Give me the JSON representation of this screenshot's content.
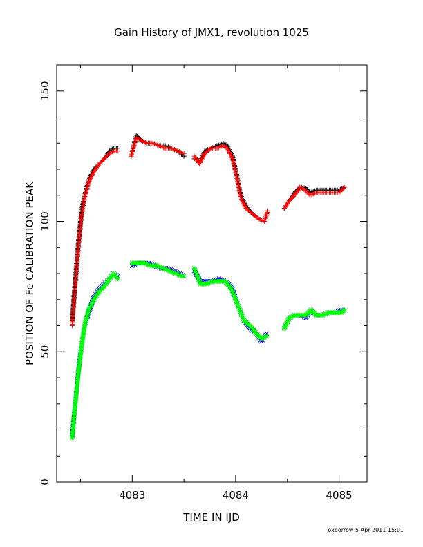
{
  "chart_data": {
    "type": "scatter",
    "title": "Gain History of JMX1, revolution 1025",
    "xlabel": "TIME IN IJD",
    "ylabel": "POSITION OF Fe CALIBRATION PEAK",
    "xlim": [
      4082.27,
      4085.27
    ],
    "ylim": [
      0,
      160
    ],
    "xticks": [
      4083,
      4084,
      4085
    ],
    "yticks": [
      0,
      50,
      100,
      150
    ],
    "grid": false,
    "legend": "none",
    "credit": "oxborrow  5-Apr-2011 15:01",
    "series": [
      {
        "marker": "+",
        "color": "#000000",
        "segments": [
          [
            [
              4082.42,
              62
            ],
            [
              4082.45,
              78
            ],
            [
              4082.48,
              92
            ],
            [
              4082.51,
              104
            ],
            [
              4082.54,
              110
            ],
            [
              4082.58,
              116
            ],
            [
              4082.63,
              120
            ],
            [
              4082.68,
              122
            ],
            [
              4082.73,
              124
            ],
            [
              4082.78,
              127
            ],
            [
              4082.82,
              128
            ],
            [
              4082.86,
              128
            ]
          ],
          [
            [
              4082.99,
              125
            ],
            [
              4083.04,
              133
            ],
            [
              4083.09,
              131
            ],
            [
              4083.14,
              130
            ],
            [
              4083.2,
              130
            ],
            [
              4083.26,
              129
            ],
            [
              4083.32,
              129
            ],
            [
              4083.38,
              128
            ],
            [
              4083.44,
              127
            ],
            [
              4083.5,
              125
            ]
          ],
          [
            [
              4083.6,
              124
            ],
            [
              4083.66,
              123
            ],
            [
              4083.7,
              127
            ],
            [
              4083.76,
              128
            ],
            [
              4083.82,
              129
            ],
            [
              4083.88,
              130
            ],
            [
              4083.92,
              129
            ],
            [
              4083.97,
              125
            ],
            [
              4084.01,
              118
            ],
            [
              4084.05,
              110
            ],
            [
              4084.1,
              106
            ],
            [
              4084.16,
              103
            ],
            [
              4084.22,
              101
            ],
            [
              4084.28,
              100
            ],
            [
              4084.31,
              104
            ]
          ],
          [
            [
              4084.47,
              105
            ],
            [
              4084.52,
              108
            ],
            [
              4084.57,
              111
            ],
            [
              4084.62,
              113
            ],
            [
              4084.67,
              113
            ],
            [
              4084.72,
              111
            ],
            [
              4084.78,
              112
            ],
            [
              4084.85,
              112
            ],
            [
              4084.92,
              112
            ],
            [
              4085.0,
              112
            ],
            [
              4085.05,
              113
            ]
          ]
        ]
      },
      {
        "marker": "+",
        "color": "#ff0000",
        "segments": [
          [
            [
              4082.42,
              60
            ],
            [
              4082.45,
              76
            ],
            [
              4082.48,
              90
            ],
            [
              4082.51,
              102
            ],
            [
              4082.54,
              109
            ],
            [
              4082.58,
              115
            ],
            [
              4082.63,
              119
            ],
            [
              4082.68,
              122
            ],
            [
              4082.73,
              124
            ],
            [
              4082.78,
              126
            ],
            [
              4082.82,
              127
            ],
            [
              4082.86,
              127
            ]
          ],
          [
            [
              4082.99,
              125
            ],
            [
              4083.04,
              132
            ],
            [
              4083.09,
              131
            ],
            [
              4083.14,
              130
            ],
            [
              4083.2,
              130
            ],
            [
              4083.26,
              129
            ],
            [
              4083.32,
              128
            ],
            [
              4083.38,
              128
            ],
            [
              4083.44,
              127
            ],
            [
              4083.5,
              126
            ]
          ],
          [
            [
              4083.6,
              125
            ],
            [
              4083.65,
              122
            ],
            [
              4083.7,
              126
            ],
            [
              4083.76,
              128
            ],
            [
              4083.82,
              128
            ],
            [
              4083.88,
              129
            ],
            [
              4083.92,
              128
            ],
            [
              4083.97,
              124
            ],
            [
              4084.01,
              117
            ],
            [
              4084.05,
              109
            ],
            [
              4084.1,
              105
            ],
            [
              4084.16,
              103
            ],
            [
              4084.22,
              101
            ],
            [
              4084.28,
              100
            ],
            [
              4084.31,
              104
            ]
          ],
          [
            [
              4084.47,
              105
            ],
            [
              4084.52,
              108
            ],
            [
              4084.57,
              110
            ],
            [
              4084.62,
              113
            ],
            [
              4084.67,
              112
            ],
            [
              4084.72,
              110
            ],
            [
              4084.78,
              111
            ],
            [
              4084.85,
              111
            ],
            [
              4084.92,
              111
            ],
            [
              4085.0,
              111
            ],
            [
              4085.05,
              113
            ]
          ]
        ]
      },
      {
        "marker": "x",
        "color": "#0000ff",
        "segments": [
          [
            [
              4082.42,
              18
            ],
            [
              4082.45,
              30
            ],
            [
              4082.48,
              43
            ],
            [
              4082.51,
              52
            ],
            [
              4082.54,
              60
            ],
            [
              4082.58,
              65
            ],
            [
              4082.63,
              71
            ],
            [
              4082.68,
              74
            ],
            [
              4082.73,
              76
            ],
            [
              4082.78,
              78
            ],
            [
              4082.82,
              80
            ],
            [
              4082.86,
              79
            ]
          ],
          [
            [
              4083.0,
              83
            ],
            [
              4083.05,
              84
            ],
            [
              4083.1,
              84
            ],
            [
              4083.16,
              84
            ],
            [
              4083.22,
              83
            ],
            [
              4083.28,
              82
            ],
            [
              4083.34,
              82
            ],
            [
              4083.4,
              81
            ],
            [
              4083.46,
              80
            ],
            [
              4083.5,
              79
            ]
          ],
          [
            [
              4083.6,
              81
            ],
            [
              4083.66,
              77
            ],
            [
              4083.72,
              77
            ],
            [
              4083.78,
              77
            ],
            [
              4083.84,
              78
            ],
            [
              4083.9,
              77
            ],
            [
              4083.96,
              75
            ],
            [
              4084.02,
              68
            ],
            [
              4084.08,
              62
            ],
            [
              4084.14,
              59
            ],
            [
              4084.2,
              57
            ],
            [
              4084.25,
              54
            ],
            [
              4084.3,
              57
            ]
          ],
          [
            [
              4084.47,
              59
            ],
            [
              4084.52,
              63
            ],
            [
              4084.57,
              64
            ],
            [
              4084.62,
              64
            ],
            [
              4084.68,
              63
            ],
            [
              4084.73,
              66
            ],
            [
              4084.78,
              64
            ],
            [
              4084.84,
              64
            ],
            [
              4084.9,
              65
            ],
            [
              4084.96,
              65
            ],
            [
              4085.02,
              66
            ],
            [
              4085.05,
              66
            ]
          ]
        ]
      },
      {
        "marker": "*",
        "color": "#00ff00",
        "segments": [
          [
            [
              4082.42,
              17
            ],
            [
              4082.45,
              30
            ],
            [
              4082.48,
              42
            ],
            [
              4082.51,
              52
            ],
            [
              4082.54,
              60
            ],
            [
              4082.58,
              66
            ],
            [
              4082.63,
              70
            ],
            [
              4082.68,
              73
            ],
            [
              4082.73,
              75
            ],
            [
              4082.78,
              78
            ],
            [
              4082.82,
              80
            ],
            [
              4082.86,
              78
            ]
          ],
          [
            [
              4083.0,
              84
            ],
            [
              4083.06,
              84
            ],
            [
              4083.12,
              84
            ],
            [
              4083.18,
              83
            ],
            [
              4083.24,
              83
            ],
            [
              4083.3,
              82
            ],
            [
              4083.36,
              81
            ],
            [
              4083.42,
              80
            ],
            [
              4083.48,
              79
            ],
            [
              4083.5,
              79
            ]
          ],
          [
            [
              4083.6,
              82
            ],
            [
              4083.66,
              76
            ],
            [
              4083.72,
              76
            ],
            [
              4083.78,
              77
            ],
            [
              4083.84,
              77
            ],
            [
              4083.9,
              77
            ],
            [
              4083.96,
              74
            ],
            [
              4084.02,
              68
            ],
            [
              4084.08,
              62
            ],
            [
              4084.14,
              60
            ],
            [
              4084.2,
              57
            ],
            [
              4084.25,
              55
            ],
            [
              4084.3,
              56
            ]
          ],
          [
            [
              4084.47,
              59
            ],
            [
              4084.52,
              63
            ],
            [
              4084.57,
              64
            ],
            [
              4084.62,
              64
            ],
            [
              4084.68,
              64
            ],
            [
              4084.73,
              66
            ],
            [
              4084.78,
              64
            ],
            [
              4084.84,
              64
            ],
            [
              4084.9,
              65
            ],
            [
              4084.96,
              65
            ],
            [
              4085.02,
              65
            ],
            [
              4085.05,
              66
            ]
          ]
        ]
      }
    ]
  }
}
